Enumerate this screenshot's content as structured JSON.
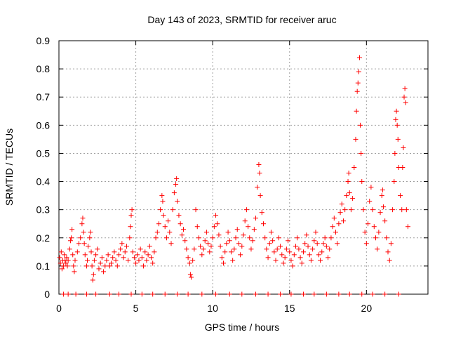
{
  "chart_data": {
    "type": "scatter",
    "title": "Day 143 of 2023, SRMTID for receiver aruc",
    "xlabel": "GPS time / hours",
    "ylabel": "SRMTID / TECUs",
    "xlim": [
      0,
      24
    ],
    "ylim": [
      0,
      0.9
    ],
    "xticks": [
      0,
      5,
      10,
      15,
      20
    ],
    "xtick_labels": [
      "0",
      "5",
      "10",
      "15",
      "20"
    ],
    "yticks": [
      0,
      0.1,
      0.2,
      0.3,
      0.4,
      0.5,
      0.6,
      0.7,
      0.8,
      0.9
    ],
    "ytick_labels": [
      "0",
      "0.1",
      "0.2",
      "0.3",
      "0.4",
      "0.5",
      "0.6",
      "0.7",
      "0.8",
      "0.9"
    ],
    "grid": true,
    "marker": "+",
    "color": "#ff0000",
    "series": [
      {
        "name": "SRMTID",
        "points": [
          [
            0.05,
            0.13
          ],
          [
            0.1,
            0.11
          ],
          [
            0.15,
            0.15
          ],
          [
            0.2,
            0.09
          ],
          [
            0.25,
            0.12
          ],
          [
            0.3,
            0.1
          ],
          [
            0.35,
            0.14
          ],
          [
            0.4,
            0.12
          ],
          [
            0.45,
            0.11
          ],
          [
            0.5,
            0.13
          ],
          [
            0.55,
            0.1
          ],
          [
            0.6,
            0.12
          ],
          [
            0.7,
            0.16
          ],
          [
            0.75,
            0.19
          ],
          [
            0.8,
            0.2
          ],
          [
            0.85,
            0.23
          ],
          [
            0.9,
            0.14
          ],
          [
            0.95,
            0.1
          ],
          [
            1.0,
            0.08
          ],
          [
            1.05,
            0.12
          ],
          [
            1.2,
            0.15
          ],
          [
            1.3,
            0.18
          ],
          [
            1.4,
            0.2
          ],
          [
            1.5,
            0.25
          ],
          [
            1.55,
            0.27
          ],
          [
            1.6,
            0.22
          ],
          [
            1.65,
            0.18
          ],
          [
            1.7,
            0.14
          ],
          [
            1.8,
            0.1
          ],
          [
            1.85,
            0.12
          ],
          [
            1.9,
            0.17
          ],
          [
            2.0,
            0.2
          ],
          [
            2.05,
            0.22
          ],
          [
            2.1,
            0.15
          ],
          [
            2.15,
            0.1
          ],
          [
            2.2,
            0.05
          ],
          [
            2.25,
            0.07
          ],
          [
            2.3,
            0.12
          ],
          [
            2.4,
            0.14
          ],
          [
            2.5,
            0.16
          ],
          [
            2.6,
            0.09
          ],
          [
            2.7,
            0.11
          ],
          [
            2.8,
            0.13
          ],
          [
            2.9,
            0.08
          ],
          [
            3.0,
            0.1
          ],
          [
            3.1,
            0.12
          ],
          [
            3.2,
            0.14
          ],
          [
            3.3,
            0.1
          ],
          [
            3.4,
            0.11
          ],
          [
            3.5,
            0.13
          ],
          [
            3.6,
            0.15
          ],
          [
            3.7,
            0.12
          ],
          [
            3.8,
            0.1
          ],
          [
            3.9,
            0.14
          ],
          [
            4.0,
            0.16
          ],
          [
            4.1,
            0.18
          ],
          [
            4.2,
            0.13
          ],
          [
            4.3,
            0.15
          ],
          [
            4.4,
            0.17
          ],
          [
            4.5,
            0.12
          ],
          [
            4.6,
            0.2
          ],
          [
            4.65,
            0.24
          ],
          [
            4.7,
            0.28
          ],
          [
            4.75,
            0.3
          ],
          [
            4.8,
            0.15
          ],
          [
            4.9,
            0.13
          ],
          [
            5.0,
            0.11
          ],
          [
            5.1,
            0.14
          ],
          [
            5.2,
            0.12
          ],
          [
            5.3,
            0.16
          ],
          [
            5.4,
            0.13
          ],
          [
            5.5,
            0.1
          ],
          [
            5.6,
            0.15
          ],
          [
            5.7,
            0.12
          ],
          [
            5.8,
            0.14
          ],
          [
            5.9,
            0.17
          ],
          [
            6.0,
            0.13
          ],
          [
            6.1,
            0.11
          ],
          [
            6.2,
            0.15
          ],
          [
            6.3,
            0.2
          ],
          [
            6.4,
            0.22
          ],
          [
            6.5,
            0.25
          ],
          [
            6.6,
            0.3
          ],
          [
            6.7,
            0.35
          ],
          [
            6.75,
            0.33
          ],
          [
            6.8,
            0.28
          ],
          [
            6.9,
            0.24
          ],
          [
            7.0,
            0.2
          ],
          [
            7.1,
            0.26
          ],
          [
            7.2,
            0.22
          ],
          [
            7.3,
            0.18
          ],
          [
            7.4,
            0.3
          ],
          [
            7.5,
            0.36
          ],
          [
            7.6,
            0.39
          ],
          [
            7.65,
            0.41
          ],
          [
            7.7,
            0.33
          ],
          [
            7.8,
            0.28
          ],
          [
            7.9,
            0.25
          ],
          [
            8.0,
            0.21
          ],
          [
            8.1,
            0.23
          ],
          [
            8.2,
            0.19
          ],
          [
            8.3,
            0.16
          ],
          [
            8.4,
            0.13
          ],
          [
            8.5,
            0.11
          ],
          [
            8.55,
            0.07
          ],
          [
            8.6,
            0.06
          ],
          [
            8.7,
            0.12
          ],
          [
            8.8,
            0.16
          ],
          [
            8.9,
            0.3
          ],
          [
            9.0,
            0.24
          ],
          [
            9.1,
            0.2
          ],
          [
            9.2,
            0.17
          ],
          [
            9.3,
            0.14
          ],
          [
            9.4,
            0.16
          ],
          [
            9.5,
            0.19
          ],
          [
            9.6,
            0.22
          ],
          [
            9.7,
            0.18
          ],
          [
            9.8,
            0.15
          ],
          [
            9.9,
            0.17
          ],
          [
            10.0,
            0.2
          ],
          [
            10.1,
            0.24
          ],
          [
            10.2,
            0.28
          ],
          [
            10.3,
            0.25
          ],
          [
            10.4,
            0.21
          ],
          [
            10.5,
            0.17
          ],
          [
            10.6,
            0.13
          ],
          [
            10.7,
            0.11
          ],
          [
            10.8,
            0.15
          ],
          [
            10.9,
            0.18
          ],
          [
            11.0,
            0.22
          ],
          [
            11.1,
            0.19
          ],
          [
            11.2,
            0.15
          ],
          [
            11.3,
            0.12
          ],
          [
            11.4,
            0.16
          ],
          [
            11.5,
            0.2
          ],
          [
            11.6,
            0.23
          ],
          [
            11.7,
            0.18
          ],
          [
            11.8,
            0.14
          ],
          [
            11.9,
            0.17
          ],
          [
            12.0,
            0.21
          ],
          [
            12.1,
            0.26
          ],
          [
            12.2,
            0.3
          ],
          [
            12.3,
            0.24
          ],
          [
            12.4,
            0.2
          ],
          [
            12.5,
            0.16
          ],
          [
            12.6,
            0.19
          ],
          [
            12.7,
            0.23
          ],
          [
            12.8,
            0.27
          ],
          [
            12.9,
            0.38
          ],
          [
            13.0,
            0.46
          ],
          [
            13.05,
            0.43
          ],
          [
            13.1,
            0.35
          ],
          [
            13.2,
            0.29
          ],
          [
            13.3,
            0.25
          ],
          [
            13.4,
            0.2
          ],
          [
            13.5,
            0.16
          ],
          [
            13.6,
            0.13
          ],
          [
            13.7,
            0.18
          ],
          [
            13.8,
            0.22
          ],
          [
            13.9,
            0.19
          ],
          [
            14.0,
            0.15
          ],
          [
            14.1,
            0.12
          ],
          [
            14.2,
            0.16
          ],
          [
            14.3,
            0.2
          ],
          [
            14.4,
            0.17
          ],
          [
            14.5,
            0.14
          ],
          [
            14.6,
            0.11
          ],
          [
            14.7,
            0.13
          ],
          [
            14.8,
            0.16
          ],
          [
            14.9,
            0.19
          ],
          [
            15.0,
            0.15
          ],
          [
            15.1,
            0.12
          ],
          [
            15.2,
            0.1
          ],
          [
            15.3,
            0.14
          ],
          [
            15.4,
            0.17
          ],
          [
            15.5,
            0.2
          ],
          [
            15.6,
            0.16
          ],
          [
            15.7,
            0.13
          ],
          [
            15.8,
            0.11
          ],
          [
            15.9,
            0.15
          ],
          [
            16.0,
            0.18
          ],
          [
            16.1,
            0.21
          ],
          [
            16.2,
            0.17
          ],
          [
            16.3,
            0.14
          ],
          [
            16.4,
            0.12
          ],
          [
            16.5,
            0.16
          ],
          [
            16.6,
            0.19
          ],
          [
            16.7,
            0.22
          ],
          [
            16.8,
            0.18
          ],
          [
            16.9,
            0.14
          ],
          [
            17.0,
            0.12
          ],
          [
            17.1,
            0.15
          ],
          [
            17.2,
            0.18
          ],
          [
            17.3,
            0.2
          ],
          [
            17.4,
            0.17
          ],
          [
            17.5,
            0.13
          ],
          [
            17.6,
            0.16
          ],
          [
            17.7,
            0.2
          ],
          [
            17.8,
            0.24
          ],
          [
            17.9,
            0.27
          ],
          [
            18.0,
            0.22
          ],
          [
            18.1,
            0.18
          ],
          [
            18.2,
            0.25
          ],
          [
            18.3,
            0.29
          ],
          [
            18.4,
            0.32
          ],
          [
            18.5,
            0.26
          ],
          [
            18.6,
            0.3
          ],
          [
            18.7,
            0.35
          ],
          [
            18.8,
            0.4
          ],
          [
            18.85,
            0.43
          ],
          [
            18.9,
            0.36
          ],
          [
            19.0,
            0.3
          ],
          [
            19.1,
            0.34
          ],
          [
            19.2,
            0.45
          ],
          [
            19.3,
            0.55
          ],
          [
            19.35,
            0.65
          ],
          [
            19.4,
            0.72
          ],
          [
            19.45,
            0.75
          ],
          [
            19.5,
            0.79
          ],
          [
            19.55,
            0.84
          ],
          [
            19.6,
            0.6
          ],
          [
            19.65,
            0.5
          ],
          [
            19.7,
            0.4
          ],
          [
            19.8,
            0.3
          ],
          [
            19.9,
            0.22
          ],
          [
            20.0,
            0.18
          ],
          [
            20.1,
            0.25
          ],
          [
            20.2,
            0.33
          ],
          [
            20.3,
            0.38
          ],
          [
            20.4,
            0.3
          ],
          [
            20.5,
            0.24
          ],
          [
            20.6,
            0.2
          ],
          [
            20.7,
            0.16
          ],
          [
            20.8,
            0.22
          ],
          [
            20.9,
            0.29
          ],
          [
            21.0,
            0.35
          ],
          [
            21.05,
            0.37
          ],
          [
            21.1,
            0.31
          ],
          [
            21.2,
            0.26
          ],
          [
            21.3,
            0.2
          ],
          [
            21.4,
            0.15
          ],
          [
            21.5,
            0.12
          ],
          [
            21.6,
            0.18
          ],
          [
            21.7,
            0.3
          ],
          [
            21.8,
            0.4
          ],
          [
            21.85,
            0.5
          ],
          [
            21.9,
            0.62
          ],
          [
            21.95,
            0.65
          ],
          [
            22.0,
            0.6
          ],
          [
            22.05,
            0.55
          ],
          [
            22.1,
            0.45
          ],
          [
            22.2,
            0.35
          ],
          [
            22.3,
            0.3
          ],
          [
            22.35,
            0.45
          ],
          [
            22.4,
            0.52
          ],
          [
            22.45,
            0.7
          ],
          [
            22.5,
            0.73
          ],
          [
            22.55,
            0.68
          ],
          [
            22.6,
            0.3
          ],
          [
            22.7,
            0.24
          ],
          [
            0.3,
            0.0
          ],
          [
            0.6,
            0.0
          ],
          [
            1.1,
            0.0
          ],
          [
            1.8,
            0.0
          ],
          [
            2.4,
            0.0
          ],
          [
            3.3,
            0.0
          ],
          [
            3.9,
            0.0
          ],
          [
            4.7,
            0.0
          ],
          [
            5.4,
            0.0
          ],
          [
            6.1,
            0.0
          ],
          [
            6.9,
            0.0
          ],
          [
            7.7,
            0.0
          ],
          [
            8.4,
            0.0
          ],
          [
            9.3,
            0.0
          ],
          [
            10.2,
            0.0
          ],
          [
            11.1,
            0.0
          ],
          [
            11.9,
            0.0
          ],
          [
            12.8,
            0.0
          ],
          [
            13.6,
            0.0
          ],
          [
            14.4,
            0.0
          ],
          [
            15.1,
            0.0
          ],
          [
            15.9,
            0.0
          ],
          [
            16.6,
            0.0
          ],
          [
            17.4,
            0.0
          ],
          [
            18.2,
            0.0
          ],
          [
            18.9,
            0.0
          ],
          [
            19.7,
            0.0
          ],
          [
            20.4,
            0.0
          ],
          [
            21.2,
            0.0
          ],
          [
            22.1,
            0.0
          ]
        ]
      }
    ]
  }
}
